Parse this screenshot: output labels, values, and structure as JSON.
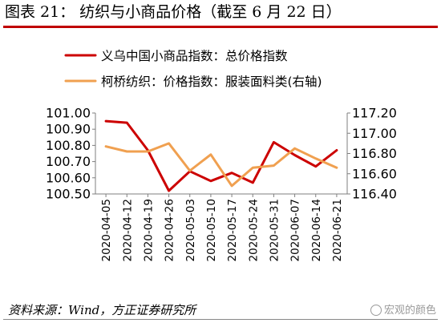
{
  "header": {
    "title": "图表 21：   纺织与小商品价格（截至 6 月 22 日）"
  },
  "footer": {
    "source": "资料来源：Wind，方正证券研究所",
    "watermark": "宏观的颜色"
  },
  "colors": {
    "accent_rule": "#c00000",
    "series_1": "#cc0000",
    "series_2": "#f0a050"
  },
  "chart_data": {
    "type": "line",
    "x": [
      "2020-04-05",
      "2020-04-12",
      "2020-04-19",
      "2020-04-26",
      "2020-05-03",
      "2020-05-10",
      "2020-05-17",
      "2020-05-24",
      "2020-05-31",
      "2020-06-07",
      "2020-06-14",
      "2020-06-21"
    ],
    "series": [
      {
        "name": "义乌中国小商品指数：总价格指数",
        "axis": "left",
        "values": [
          100.95,
          100.94,
          100.77,
          100.52,
          100.64,
          100.58,
          100.63,
          100.57,
          100.82,
          100.74,
          100.67,
          100.77
        ]
      },
      {
        "name": "柯桥纺织：价格指数：服装面料类(右轴)",
        "axis": "right",
        "values": [
          116.87,
          116.82,
          116.82,
          116.9,
          116.63,
          116.79,
          116.48,
          116.66,
          116.68,
          116.85,
          116.75,
          116.66
        ]
      }
    ],
    "y_left": {
      "lim": [
        100.5,
        101.0
      ],
      "ticks": [
        "100.50",
        "100.60",
        "100.70",
        "100.80",
        "100.90",
        "101.00"
      ]
    },
    "y_right": {
      "lim": [
        116.4,
        117.2
      ],
      "ticks": [
        "116.40",
        "116.60",
        "116.80",
        "117.00",
        "117.20"
      ]
    },
    "grid": false,
    "legend_placement": "top"
  }
}
